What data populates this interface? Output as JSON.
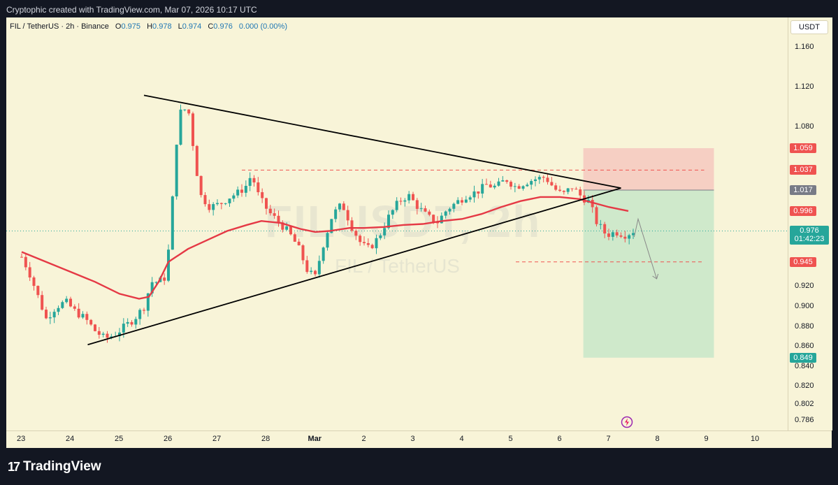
{
  "header": {
    "credit": "Cryptophic created with TradingView.com, Mar 07, 2026 10:17 UTC"
  },
  "legend": {
    "symbol": "FIL / TetherUS · 2h · Binance",
    "open_label": "O",
    "open": "0.975",
    "high_label": "H",
    "high": "0.978",
    "low_label": "L",
    "low": "0.974",
    "close_label": "C",
    "close": "0.976",
    "change": "0.000 (0.00%)"
  },
  "watermark": {
    "symbol": "FILUSDT, 2h",
    "name": "FIL / TetherUS"
  },
  "currency": "USDT",
  "footer": {
    "brand": "TradingView",
    "logo_mark": "17"
  },
  "colors": {
    "up": "#26a69a",
    "down": "#ef5350",
    "ma": "#e53945",
    "stop_zone": "#f6c8c0",
    "target_zone": "#c8e6c9",
    "background": "#f8f4d8",
    "frame": "#131722"
  },
  "icons": {
    "replay": "lightning-bolt-icon",
    "logo": "tradingview-logo-icon"
  },
  "chart_data": {
    "type": "candlestick",
    "symbol": "FIL/USDT",
    "timeframe": "2h",
    "ylim": [
      0.776,
      1.19
    ],
    "y_ticks": [
      "1.160",
      "1.120",
      "1.080",
      "0.920",
      "0.900",
      "0.880",
      "0.860",
      "0.840",
      "0.820",
      "0.802",
      "0.786"
    ],
    "x_ticks": [
      "23",
      "24",
      "25",
      "26",
      "27",
      "28",
      "Mar",
      "2",
      "3",
      "4",
      "5",
      "6",
      "7",
      "8",
      "9",
      "10"
    ],
    "x_tick_day_index": [
      0,
      1,
      2,
      3,
      4,
      5,
      6,
      7,
      8,
      9,
      10,
      11,
      12,
      13,
      14,
      15
    ],
    "price_tags": [
      {
        "label": "1.059",
        "value": 1.059,
        "kind": "stop"
      },
      {
        "label": "1.037",
        "value": 1.037,
        "kind": "resistance"
      },
      {
        "label": "1.017",
        "value": 1.017,
        "kind": "entry"
      },
      {
        "label": "0.996",
        "value": 0.996,
        "kind": "ma"
      },
      {
        "label": "0.976",
        "value": 0.976,
        "kind": "last",
        "countdown": "01:42:23"
      },
      {
        "label": "0.945",
        "value": 0.945,
        "kind": "support"
      },
      {
        "label": "0.849",
        "value": 0.849,
        "kind": "target"
      }
    ],
    "anchors": [
      [
        0.0,
        0.95
      ],
      [
        0.15,
        0.935
      ],
      [
        0.3,
        0.915
      ],
      [
        0.5,
        0.888
      ],
      [
        0.7,
        0.9
      ],
      [
        0.9,
        0.905
      ],
      [
        1.1,
        0.895
      ],
      [
        1.3,
        0.888
      ],
      [
        1.5,
        0.876
      ],
      [
        1.7,
        0.868
      ],
      [
        1.9,
        0.872
      ],
      [
        2.1,
        0.88
      ],
      [
        2.3,
        0.888
      ],
      [
        2.5,
        0.9
      ],
      [
        2.65,
        0.925
      ],
      [
        2.8,
        0.925
      ],
      [
        2.95,
        0.93
      ],
      [
        3.05,
        0.982
      ],
      [
        3.15,
        1.06
      ],
      [
        3.25,
        1.095
      ],
      [
        3.4,
        1.1
      ],
      [
        3.55,
        1.045
      ],
      [
        3.65,
        1.012
      ],
      [
        3.85,
        1.0
      ],
      [
        4.05,
        1.003
      ],
      [
        4.25,
        1.01
      ],
      [
        4.45,
        1.015
      ],
      [
        4.6,
        1.022
      ],
      [
        4.7,
        1.033
      ],
      [
        4.85,
        1.01
      ],
      [
        5.05,
        0.995
      ],
      [
        5.25,
        0.985
      ],
      [
        5.45,
        0.975
      ],
      [
        5.65,
        0.96
      ],
      [
        5.85,
        0.935
      ],
      [
        6.0,
        0.93
      ],
      [
        6.15,
        0.96
      ],
      [
        6.35,
        0.992
      ],
      [
        6.55,
        1.003
      ],
      [
        6.75,
        0.98
      ],
      [
        6.95,
        0.962
      ],
      [
        7.1,
        0.958
      ],
      [
        7.3,
        0.97
      ],
      [
        7.5,
        0.99
      ],
      [
        7.7,
        1.005
      ],
      [
        7.9,
        1.012
      ],
      [
        8.1,
        1.0
      ],
      [
        8.3,
        0.99
      ],
      [
        8.5,
        0.985
      ],
      [
        8.7,
        0.998
      ],
      [
        8.9,
        1.005
      ],
      [
        9.1,
        1.012
      ],
      [
        9.3,
        1.015
      ],
      [
        9.5,
        1.022
      ],
      [
        9.7,
        1.02
      ],
      [
        9.9,
        1.028
      ],
      [
        10.1,
        1.02
      ],
      [
        10.3,
        1.025
      ],
      [
        10.5,
        1.028
      ],
      [
        10.7,
        1.03
      ],
      [
        10.9,
        1.018
      ],
      [
        11.05,
        1.012
      ],
      [
        11.25,
        1.02
      ],
      [
        11.45,
        1.01
      ],
      [
        11.6,
        1.005
      ],
      [
        11.75,
        0.985
      ],
      [
        11.95,
        0.972
      ],
      [
        12.15,
        0.975
      ],
      [
        12.35,
        0.972
      ],
      [
        12.5,
        0.976
      ]
    ],
    "ma_line": [
      [
        0.0,
        0.955
      ],
      [
        0.5,
        0.945
      ],
      [
        1.0,
        0.935
      ],
      [
        1.5,
        0.925
      ],
      [
        2.0,
        0.913
      ],
      [
        2.4,
        0.908
      ],
      [
        2.6,
        0.91
      ],
      [
        2.8,
        0.925
      ],
      [
        3.0,
        0.945
      ],
      [
        3.4,
        0.958
      ],
      [
        3.8,
        0.967
      ],
      [
        4.2,
        0.976
      ],
      [
        4.6,
        0.982
      ],
      [
        4.9,
        0.986
      ],
      [
        5.3,
        0.984
      ],
      [
        5.7,
        0.978
      ],
      [
        6.0,
        0.975
      ],
      [
        6.3,
        0.976
      ],
      [
        6.7,
        0.979
      ],
      [
        7.0,
        0.979
      ],
      [
        7.4,
        0.98
      ],
      [
        7.8,
        0.982
      ],
      [
        8.2,
        0.983
      ],
      [
        8.6,
        0.986
      ],
      [
        9.0,
        0.988
      ],
      [
        9.4,
        0.993
      ],
      [
        9.8,
        1.0
      ],
      [
        10.2,
        1.006
      ],
      [
        10.6,
        1.01
      ],
      [
        11.0,
        1.01
      ],
      [
        11.4,
        1.008
      ],
      [
        11.7,
        1.004
      ],
      [
        12.0,
        1.0
      ],
      [
        12.4,
        0.996
      ]
    ],
    "triangle": {
      "upper": [
        [
          2.5,
          1.112
        ],
        [
          12.25,
          1.019
        ]
      ],
      "lower": [
        [
          1.35,
          0.862
        ],
        [
          12.25,
          1.019
        ]
      ]
    },
    "support_line": {
      "value": 0.945,
      "from": 10.1,
      "to": 13.95
    },
    "resistance_line": {
      "value": 1.037,
      "from": 4.5,
      "to": 13.95
    },
    "position": {
      "from": 11.48,
      "to": 14.15,
      "stop": 1.059,
      "entry": 1.017,
      "target": 0.849
    },
    "projection": [
      [
        12.52,
        0.97
      ],
      [
        12.6,
        0.988
      ],
      [
        12.98,
        0.928
      ]
    ]
  }
}
